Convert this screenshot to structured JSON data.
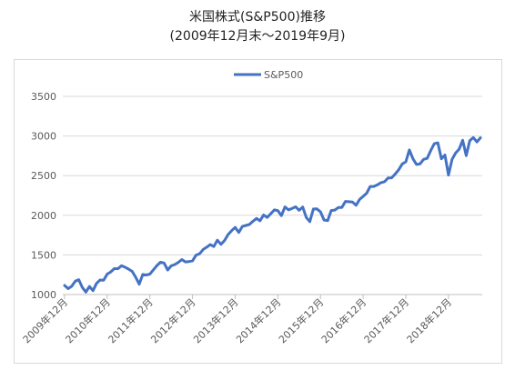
{
  "chart_data": {
    "type": "line",
    "title": "米国株式(S&P500)推移",
    "subtitle": "(2009年12月末～2019年9月)",
    "xlabel": "",
    "ylabel": "",
    "ylim": [
      1000,
      3500
    ],
    "yticks": [
      1000,
      1500,
      2000,
      2500,
      3000,
      3500
    ],
    "grid": "horizontal",
    "legend_position": "top-center",
    "x_ticks": [
      "2009年12月",
      "2010年12月",
      "2011年12月",
      "2012年12月",
      "2013年12月",
      "2014年12月",
      "2015年12月",
      "2016年12月",
      "2017年12月",
      "2018年12月"
    ],
    "series": [
      {
        "name": "S&P500",
        "color": "#4472C4",
        "x": [
          "2009-12",
          "2010-01",
          "2010-02",
          "2010-03",
          "2010-04",
          "2010-05",
          "2010-06",
          "2010-07",
          "2010-08",
          "2010-09",
          "2010-10",
          "2010-11",
          "2010-12",
          "2011-01",
          "2011-02",
          "2011-03",
          "2011-04",
          "2011-05",
          "2011-06",
          "2011-07",
          "2011-08",
          "2011-09",
          "2011-10",
          "2011-11",
          "2011-12",
          "2012-01",
          "2012-02",
          "2012-03",
          "2012-04",
          "2012-05",
          "2012-06",
          "2012-07",
          "2012-08",
          "2012-09",
          "2012-10",
          "2012-11",
          "2012-12",
          "2013-01",
          "2013-02",
          "2013-03",
          "2013-04",
          "2013-05",
          "2013-06",
          "2013-07",
          "2013-08",
          "2013-09",
          "2013-10",
          "2013-11",
          "2013-12",
          "2014-01",
          "2014-02",
          "2014-03",
          "2014-04",
          "2014-05",
          "2014-06",
          "2014-07",
          "2014-08",
          "2014-09",
          "2014-10",
          "2014-11",
          "2014-12",
          "2015-01",
          "2015-02",
          "2015-03",
          "2015-04",
          "2015-05",
          "2015-06",
          "2015-07",
          "2015-08",
          "2015-09",
          "2015-10",
          "2015-11",
          "2015-12",
          "2016-01",
          "2016-02",
          "2016-03",
          "2016-04",
          "2016-05",
          "2016-06",
          "2016-07",
          "2016-08",
          "2016-09",
          "2016-10",
          "2016-11",
          "2016-12",
          "2017-01",
          "2017-02",
          "2017-03",
          "2017-04",
          "2017-05",
          "2017-06",
          "2017-07",
          "2017-08",
          "2017-09",
          "2017-10",
          "2017-11",
          "2017-12",
          "2018-01",
          "2018-02",
          "2018-03",
          "2018-04",
          "2018-05",
          "2018-06",
          "2018-07",
          "2018-08",
          "2018-09",
          "2018-10",
          "2018-11",
          "2018-12",
          "2019-01",
          "2019-02",
          "2019-03",
          "2019-04",
          "2019-05",
          "2019-06",
          "2019-07",
          "2019-08",
          "2019-09"
        ],
        "values": [
          1115,
          1074,
          1104,
          1169,
          1187,
          1089,
          1031,
          1102,
          1049,
          1141,
          1183,
          1181,
          1258,
          1286,
          1327,
          1326,
          1364,
          1345,
          1321,
          1292,
          1219,
          1131,
          1253,
          1247,
          1258,
          1312,
          1366,
          1408,
          1398,
          1310,
          1362,
          1379,
          1406,
          1441,
          1412,
          1416,
          1426,
          1498,
          1515,
          1569,
          1598,
          1631,
          1606,
          1686,
          1633,
          1682,
          1757,
          1806,
          1848,
          1783,
          1859,
          1872,
          1884,
          1924,
          1960,
          1931,
          2003,
          1972,
          2018,
          2068,
          2059,
          1995,
          2105,
          2068,
          2086,
          2107,
          2063,
          2104,
          1972,
          1920,
          2079,
          2080,
          2044,
          1940,
          1932,
          2060,
          2065,
          2097,
          2099,
          2174,
          2171,
          2168,
          2126,
          2199,
          2239,
          2279,
          2364,
          2363,
          2384,
          2412,
          2423,
          2470,
          2472,
          2519,
          2575,
          2648,
          2674,
          2824,
          2714,
          2641,
          2648,
          2705,
          2718,
          2816,
          2902,
          2914,
          2712,
          2760,
          2507,
          2704,
          2784,
          2834,
          2946,
          2752,
          2942,
          2980,
          2926,
          2977
        ]
      }
    ]
  }
}
